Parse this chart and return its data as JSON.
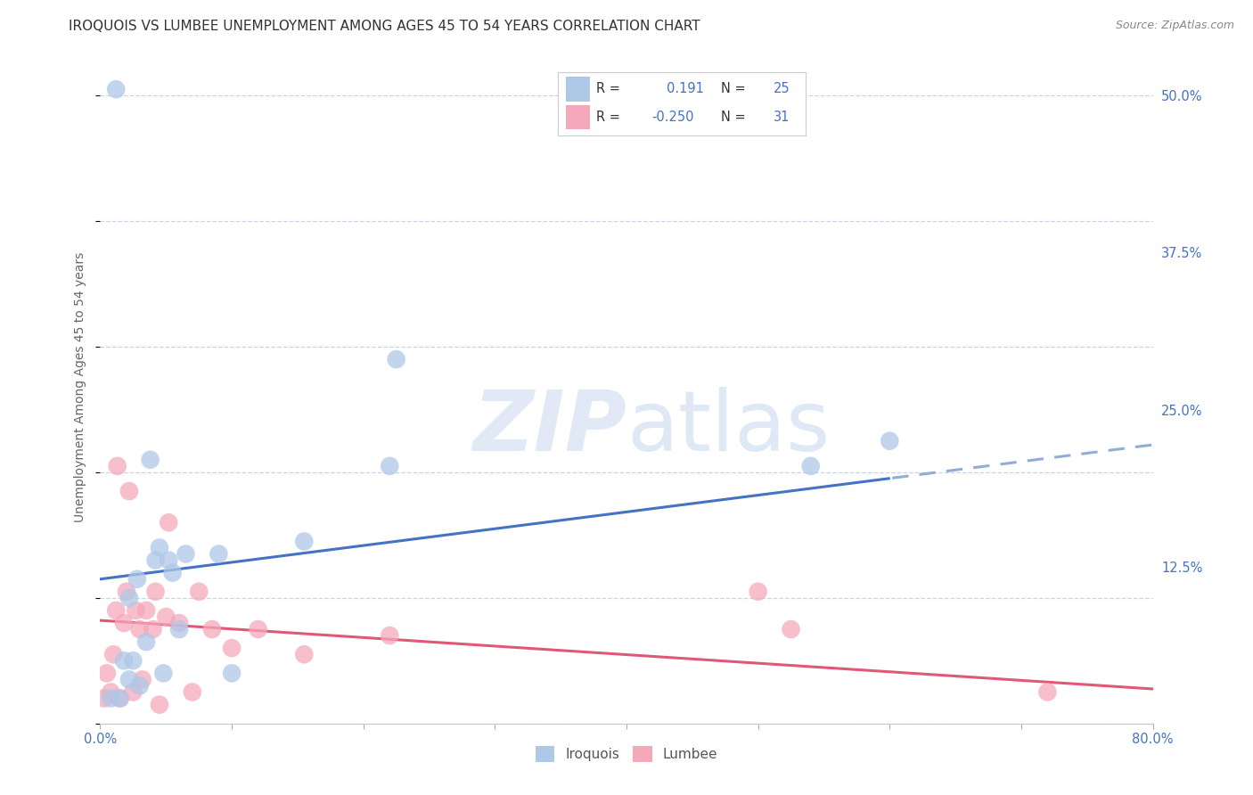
{
  "title": "IROQUOIS VS LUMBEE UNEMPLOYMENT AMONG AGES 45 TO 54 YEARS CORRELATION CHART",
  "source": "Source: ZipAtlas.com",
  "ylabel": "Unemployment Among Ages 45 to 54 years",
  "xlim": [
    0.0,
    0.8
  ],
  "ylim": [
    0.0,
    0.535
  ],
  "xticks": [
    0.0,
    0.1,
    0.2,
    0.3,
    0.4,
    0.5,
    0.6,
    0.7,
    0.8
  ],
  "xticklabels": [
    "0.0%",
    "",
    "",
    "",
    "",
    "",
    "",
    "",
    "80.0%"
  ],
  "ytick_positions": [
    0.0,
    0.125,
    0.25,
    0.375,
    0.5
  ],
  "yticklabels_right": [
    "",
    "12.5%",
    "25.0%",
    "37.5%",
    "50.0%"
  ],
  "iroquois_R": 0.191,
  "iroquois_N": 25,
  "lumbee_R": -0.25,
  "lumbee_N": 31,
  "iroquois_color": "#aec8e8",
  "lumbee_color": "#f5a8ba",
  "iroquois_line_color": "#4472c4",
  "lumbee_line_color": "#e05878",
  "trend_dashed_color": "#90aed8",
  "background_color": "#ffffff",
  "grid_color": "#c8d4e8",
  "iroquois_x": [
    0.008,
    0.015,
    0.018,
    0.022,
    0.022,
    0.025,
    0.028,
    0.03,
    0.035,
    0.038,
    0.042,
    0.045,
    0.048,
    0.052,
    0.055,
    0.06,
    0.065,
    0.09,
    0.1,
    0.155,
    0.22,
    0.225,
    0.54,
    0.6
  ],
  "iroquois_y": [
    0.02,
    0.02,
    0.05,
    0.035,
    0.1,
    0.05,
    0.115,
    0.03,
    0.065,
    0.21,
    0.13,
    0.14,
    0.04,
    0.13,
    0.12,
    0.075,
    0.135,
    0.135,
    0.04,
    0.145,
    0.205,
    0.29,
    0.205,
    0.225
  ],
  "iroquois_outlier_x": [
    0.012
  ],
  "iroquois_outlier_y": [
    0.505
  ],
  "lumbee_x": [
    0.003,
    0.005,
    0.008,
    0.01,
    0.012,
    0.013,
    0.015,
    0.018,
    0.02,
    0.022,
    0.025,
    0.027,
    0.03,
    0.032,
    0.035,
    0.04,
    0.042,
    0.045,
    0.05,
    0.052,
    0.06,
    0.07,
    0.075,
    0.085,
    0.1,
    0.12,
    0.155,
    0.22,
    0.5,
    0.525,
    0.72
  ],
  "lumbee_y": [
    0.02,
    0.04,
    0.025,
    0.055,
    0.09,
    0.205,
    0.02,
    0.08,
    0.105,
    0.185,
    0.025,
    0.09,
    0.075,
    0.035,
    0.09,
    0.075,
    0.105,
    0.015,
    0.085,
    0.16,
    0.08,
    0.025,
    0.105,
    0.075,
    0.06,
    0.075,
    0.055,
    0.07,
    0.105,
    0.075,
    0.025
  ],
  "watermark_zip": "ZIP",
  "watermark_atlas": "atlas",
  "title_fontsize": 11,
  "axis_fontsize": 10,
  "tick_fontsize": 10.5,
  "source_fontsize": 9
}
